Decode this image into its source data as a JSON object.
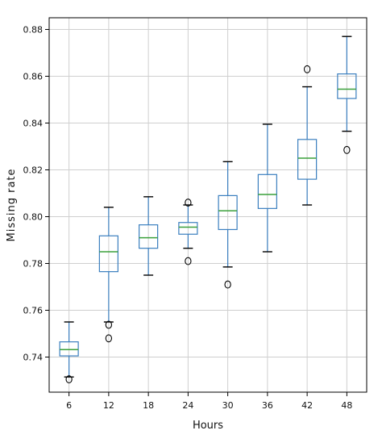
{
  "chart_data": {
    "type": "box",
    "title": "",
    "xlabel": "Hours",
    "ylabel": "Missing rate",
    "ylim": [
      0.725,
      0.885
    ],
    "yticks": [
      0.74,
      0.76,
      0.78,
      0.8,
      0.82,
      0.84,
      0.86,
      0.88
    ],
    "ytick_labels": [
      "0.74",
      "0.76",
      "0.78",
      "0.80",
      "0.82",
      "0.84",
      "0.86",
      "0.88"
    ],
    "categories": [
      "6",
      "12",
      "18",
      "24",
      "30",
      "36",
      "42",
      "48"
    ],
    "grid": true,
    "colors": {
      "box": "#3b7fbf",
      "median": "#3aa03a",
      "grid": "#cfcfcf",
      "axis": "#000000"
    },
    "boxes": [
      {
        "category": "6",
        "whisker_low": 0.7315,
        "q1": 0.7405,
        "median": 0.7432,
        "q3": 0.7465,
        "whisker_high": 0.755,
        "outliers": [
          0.7305
        ]
      },
      {
        "category": "12",
        "whisker_low": 0.755,
        "q1": 0.7765,
        "median": 0.785,
        "q3": 0.7918,
        "whisker_high": 0.804,
        "outliers": [
          0.7538,
          0.748
        ]
      },
      {
        "category": "18",
        "whisker_low": 0.775,
        "q1": 0.7865,
        "median": 0.791,
        "q3": 0.7965,
        "whisker_high": 0.8085,
        "outliers": []
      },
      {
        "category": "24",
        "whisker_low": 0.7865,
        "q1": 0.7925,
        "median": 0.7955,
        "q3": 0.7975,
        "whisker_high": 0.805,
        "outliers": [
          0.806,
          0.781
        ]
      },
      {
        "category": "30",
        "whisker_low": 0.7785,
        "q1": 0.7945,
        "median": 0.8025,
        "q3": 0.809,
        "whisker_high": 0.8235,
        "outliers": [
          0.771
        ]
      },
      {
        "category": "36",
        "whisker_low": 0.785,
        "q1": 0.8035,
        "median": 0.8095,
        "q3": 0.818,
        "whisker_high": 0.8395,
        "outliers": []
      },
      {
        "category": "42",
        "whisker_low": 0.805,
        "q1": 0.816,
        "median": 0.825,
        "q3": 0.833,
        "whisker_high": 0.8555,
        "outliers": [
          0.863
        ]
      },
      {
        "category": "48",
        "whisker_low": 0.8365,
        "q1": 0.8505,
        "median": 0.8545,
        "q3": 0.861,
        "whisker_high": 0.877,
        "outliers": [
          0.8285
        ]
      }
    ]
  }
}
